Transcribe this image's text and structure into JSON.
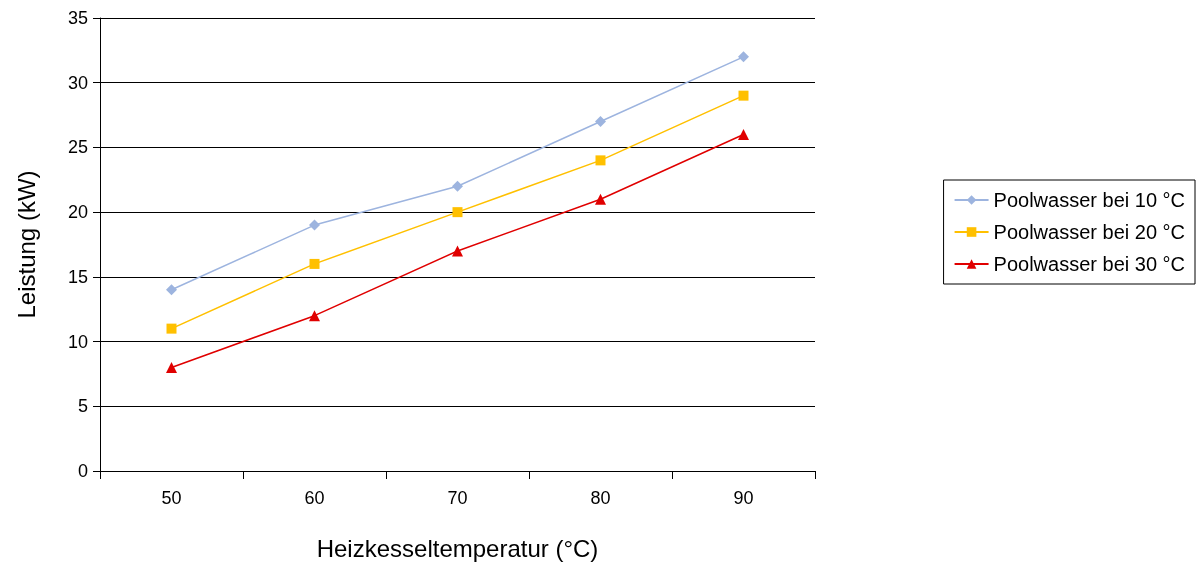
{
  "chart_data": {
    "type": "line",
    "xlabel": "Heizkesseltemperatur (°C)",
    "ylabel": "Leistung (kW)",
    "categories": [
      "50",
      "60",
      "70",
      "80",
      "90"
    ],
    "series": [
      {
        "name": "Poolwasser bei 10 °C",
        "color": "#9db4df",
        "marker": "diamond",
        "values": [
          14,
          19,
          22,
          27,
          32
        ]
      },
      {
        "name": "Poolwasser bei 20 °C",
        "color": "#ffc000",
        "marker": "square",
        "values": [
          11,
          16,
          20,
          24,
          29
        ]
      },
      {
        "name": "Poolwasser bei 30 °C",
        "color": "#e00000",
        "marker": "triangle",
        "values": [
          8,
          12,
          17,
          21,
          26
        ]
      }
    ],
    "ylim": [
      0,
      35
    ],
    "yticks": [
      0,
      5,
      10,
      15,
      20,
      25,
      30,
      35
    ],
    "grid": "y",
    "legend": "right",
    "line_style": "solid"
  }
}
